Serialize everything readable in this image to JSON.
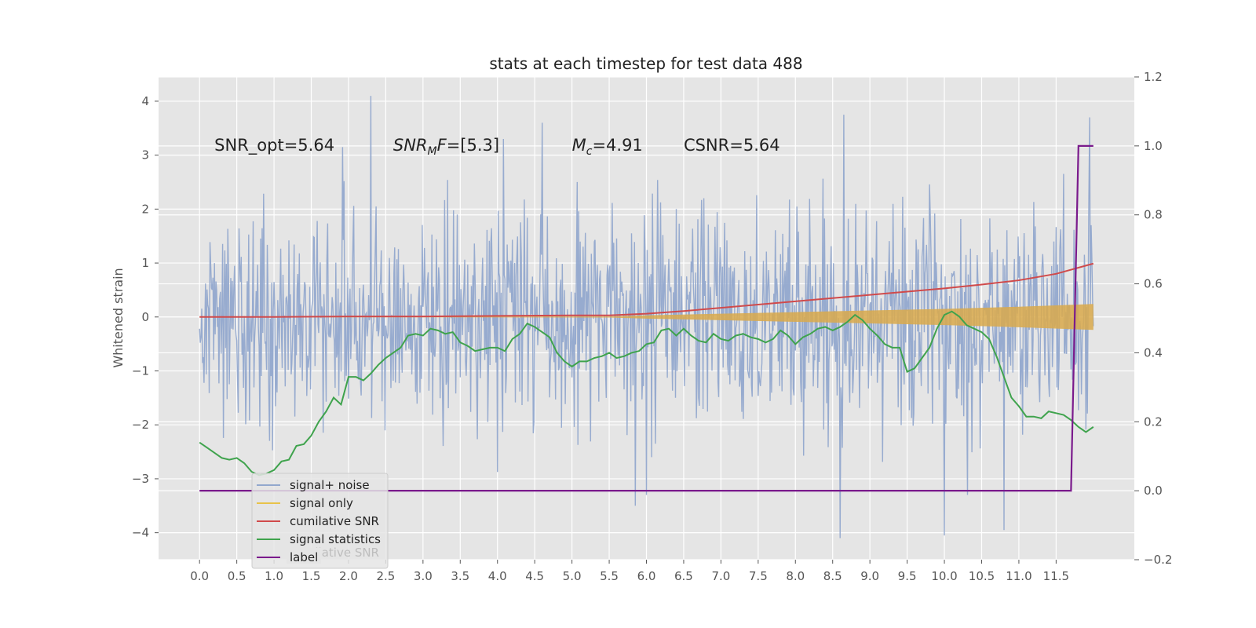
{
  "chart_data": {
    "type": "line",
    "title": "stats at each timestep for test data 488",
    "ylabel": "Whitened strain",
    "xlim": [
      -0.55,
      12.55
    ],
    "ylim": [
      -4.5,
      4.45
    ],
    "y2lim": [
      -0.2,
      1.2
    ],
    "x_ticks": [
      0.0,
      0.5,
      1.0,
      1.5,
      2.0,
      2.5,
      3.0,
      3.5,
      4.0,
      4.5,
      5.0,
      5.5,
      6.0,
      6.5,
      7.0,
      7.5,
      8.0,
      8.5,
      9.0,
      9.5,
      10.0,
      10.5,
      11.0,
      11.5
    ],
    "x_tick_labels": [
      "0.0",
      "0.5",
      "1.0",
      "1.5",
      "2.0",
      "2.5",
      "3.0",
      "3.5",
      "4.0",
      "4.5",
      "5.0",
      "5.5",
      "6.0",
      "6.5",
      "7.0",
      "7.5",
      "8.0",
      "8.5",
      "9.0",
      "9.5",
      "10.0",
      "10.5",
      "11.0",
      "11.5"
    ],
    "y_ticks": [
      -4,
      -3,
      -2,
      -1,
      0,
      1,
      2,
      3,
      4
    ],
    "y_tick_labels": [
      "−4",
      "−3",
      "−2",
      "−1",
      "0",
      "1",
      "2",
      "3",
      "4"
    ],
    "y2_ticks": [
      -0.2,
      0.0,
      0.2,
      0.4,
      0.6,
      0.8,
      1.0,
      1.2
    ],
    "y2_tick_labels": [
      "−0.2",
      "0.0",
      "0.2",
      "0.4",
      "0.6",
      "0.8",
      "1.0",
      "1.2"
    ],
    "grid": true,
    "legend_position": "lower-left",
    "annotations": [
      {
        "x": 0.2,
        "y": 3.2,
        "text": "SNR_opt=5.64",
        "style": "normal"
      },
      {
        "x": 2.6,
        "y": 3.2,
        "text": "SNR",
        "sub": "M",
        "tail": "F=[5.3]",
        "style": "math"
      },
      {
        "x": 5.0,
        "y": 3.2,
        "text": "M",
        "sub": "c",
        "tail": "=4.91",
        "style": "math"
      },
      {
        "x": 6.5,
        "y": 3.2,
        "text": "CSNR=5.64",
        "style": "normal"
      }
    ],
    "series": [
      {
        "name": "signal+ noise",
        "axis": "left",
        "color": "#92a8cd",
        "kind": "noise",
        "x_range": [
          0.0,
          12.0
        ],
        "approx_std": 1.0,
        "notable_spikes": [
          {
            "x": 2.3,
            "y": 4.1
          },
          {
            "x": 4.6,
            "y": 3.6
          },
          {
            "x": 8.65,
            "y": 3.75
          },
          {
            "x": 11.95,
            "y": 3.7
          },
          {
            "x": 8.6,
            "y": -4.1
          },
          {
            "x": 10.0,
            "y": -4.05
          },
          {
            "x": 10.8,
            "y": -3.95
          },
          {
            "x": 5.85,
            "y": -3.5
          }
        ]
      },
      {
        "name": "signal only",
        "axis": "left",
        "color": "#e8c34a",
        "band_color": "#d9a94b",
        "kind": "chirp_band",
        "x": [
          0.0,
          5.5,
          6.0,
          7.0,
          8.0,
          9.0,
          10.0,
          11.0,
          12.0
        ],
        "amplitude": [
          0.005,
          0.01,
          0.03,
          0.06,
          0.09,
          0.12,
          0.15,
          0.19,
          0.24
        ]
      },
      {
        "name": "cumilative SNR",
        "axis": "left",
        "color": "#d04a4b",
        "x": [
          0.0,
          1.0,
          2.0,
          3.0,
          4.0,
          5.0,
          5.5,
          6.0,
          6.5,
          7.0,
          7.5,
          8.0,
          8.5,
          9.0,
          9.5,
          10.0,
          10.5,
          11.0,
          11.5,
          12.0
        ],
        "y": [
          0.0,
          0.0,
          0.01,
          0.01,
          0.02,
          0.03,
          0.03,
          0.06,
          0.11,
          0.17,
          0.23,
          0.29,
          0.35,
          0.41,
          0.47,
          0.53,
          0.6,
          0.68,
          0.8,
          0.99
        ]
      },
      {
        "name": "signal statistics",
        "axis": "right",
        "color": "#3fa34d",
        "x": [
          0.0,
          0.1,
          0.2,
          0.3,
          0.4,
          0.5,
          0.6,
          0.7,
          0.8,
          0.9,
          1.0,
          1.1,
          1.2,
          1.3,
          1.4,
          1.5,
          1.6,
          1.7,
          1.8,
          1.9,
          2.0,
          2.1,
          2.2,
          2.3,
          2.4,
          2.5,
          2.6,
          2.7,
          2.8,
          2.9,
          3.0,
          3.1,
          3.2,
          3.3,
          3.4,
          3.5,
          3.6,
          3.7,
          3.8,
          3.9,
          4.0,
          4.1,
          4.2,
          4.3,
          4.4,
          4.5,
          4.6,
          4.7,
          4.8,
          4.9,
          5.0,
          5.1,
          5.2,
          5.3,
          5.4,
          5.5,
          5.6,
          5.7,
          5.8,
          5.9,
          6.0,
          6.1,
          6.2,
          6.3,
          6.4,
          6.5,
          6.6,
          6.7,
          6.8,
          6.9,
          7.0,
          7.1,
          7.2,
          7.3,
          7.4,
          7.5,
          7.6,
          7.7,
          7.8,
          7.9,
          8.0,
          8.1,
          8.2,
          8.3,
          8.4,
          8.5,
          8.6,
          8.7,
          8.8,
          8.9,
          9.0,
          9.1,
          9.2,
          9.3,
          9.4,
          9.5,
          9.6,
          9.7,
          9.8,
          9.9,
          10.0,
          10.1,
          10.2,
          10.3,
          10.4,
          10.5,
          10.6,
          10.7,
          10.8,
          10.9,
          11.0,
          11.1,
          11.2,
          11.3,
          11.4,
          11.5,
          11.6,
          11.7,
          11.8,
          11.9,
          12.0
        ],
        "y": [
          0.14,
          0.125,
          0.11,
          0.095,
          0.09,
          0.095,
          0.08,
          0.055,
          0.045,
          0.05,
          0.06,
          0.085,
          0.09,
          0.13,
          0.135,
          0.16,
          0.2,
          0.23,
          0.27,
          0.25,
          0.33,
          0.33,
          0.32,
          0.34,
          0.365,
          0.385,
          0.4,
          0.415,
          0.45,
          0.455,
          0.45,
          0.47,
          0.465,
          0.455,
          0.46,
          0.43,
          0.42,
          0.405,
          0.41,
          0.415,
          0.415,
          0.405,
          0.44,
          0.455,
          0.485,
          0.475,
          0.46,
          0.445,
          0.4,
          0.375,
          0.36,
          0.375,
          0.375,
          0.385,
          0.39,
          0.4,
          0.385,
          0.39,
          0.4,
          0.405,
          0.425,
          0.43,
          0.465,
          0.47,
          0.45,
          0.47,
          0.45,
          0.435,
          0.43,
          0.455,
          0.44,
          0.435,
          0.45,
          0.455,
          0.445,
          0.44,
          0.43,
          0.44,
          0.465,
          0.45,
          0.425,
          0.445,
          0.455,
          0.47,
          0.475,
          0.465,
          0.475,
          0.49,
          0.51,
          0.495,
          0.47,
          0.45,
          0.425,
          0.415,
          0.415,
          0.345,
          0.355,
          0.385,
          0.415,
          0.47,
          0.51,
          0.52,
          0.505,
          0.48,
          0.47,
          0.46,
          0.44,
          0.39,
          0.33,
          0.27,
          0.245,
          0.215,
          0.215,
          0.21,
          0.23,
          0.225,
          0.22,
          0.205,
          0.185,
          0.17,
          0.185
        ]
      },
      {
        "name": "label",
        "axis": "right",
        "color": "#7a1a8c",
        "x": [
          0.0,
          11.7,
          11.8,
          12.0
        ],
        "y": [
          0.0,
          0.0,
          1.0,
          1.0
        ]
      }
    ],
    "legend_ghost_text": "cumilative SNR"
  }
}
